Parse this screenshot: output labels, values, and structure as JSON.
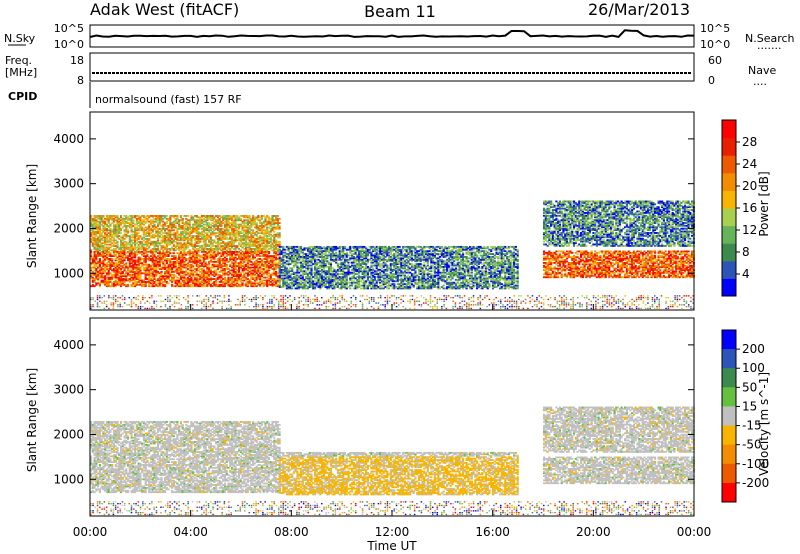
{
  "header": {
    "title_left": "Adak West (fitACF)",
    "title_center": "Beam 11",
    "title_right": "26/Mar/2013"
  },
  "top_panels": {
    "nsky_label": "N.Sky",
    "nsearch_label": "N.Search",
    "nsearch_dots": "·······",
    "nsky_ticks": [
      "10^5",
      "10^0"
    ],
    "nsearch_ticks": [
      "10^5",
      "10^0"
    ],
    "freq_label": "Freq.",
    "freq_unit": "[MHz]",
    "freq_ticks": [
      "18",
      "8"
    ],
    "nave_label": "Nave",
    "nave_dots": "····",
    "nave_ticks": [
      "60",
      "0"
    ],
    "cpid_label": "CPID",
    "cpid_value": "normalsound (fast) 157 RF"
  },
  "chart_data": [
    {
      "type": "heatmap",
      "quantity": "Power",
      "ylabel": "Slant Range [km]",
      "ylim": [
        180,
        4600
      ],
      "yticks": [
        "1000",
        "2000",
        "3000",
        "4000"
      ],
      "colorbar_label": "Power [dB]",
      "colorbar_ticks": [
        "4",
        "8",
        "12",
        "16",
        "20",
        "24",
        "28"
      ],
      "colorscale": [
        "#0000ff",
        "#2b56b8",
        "#3d8a4e",
        "#66b45a",
        "#a8d04e",
        "#f7b400",
        "#f28c00",
        "#ee5a00",
        "#e82000",
        "#ff0000"
      ],
      "echo_regions": [
        {
          "t_start": 0.0,
          "t_end": 7.5,
          "range_low": 700,
          "range_high": 1500,
          "level": "high"
        },
        {
          "t_start": 0.0,
          "t_end": 7.5,
          "range_low": 1500,
          "range_high": 2300,
          "level": "medium"
        },
        {
          "t_start": 7.5,
          "t_end": 17.0,
          "range_low": 650,
          "range_high": 1600,
          "level": "low"
        },
        {
          "t_start": 18.0,
          "t_end": 24.0,
          "range_low": 900,
          "range_high": 1500,
          "level": "high"
        },
        {
          "t_start": 18.0,
          "t_end": 24.0,
          "range_low": 1600,
          "range_high": 2600,
          "level": "low"
        }
      ]
    },
    {
      "type": "heatmap",
      "quantity": "Velocity",
      "ylabel": "Slant Range [km]",
      "ylim": [
        180,
        4600
      ],
      "yticks": [
        "1000",
        "2000",
        "3000",
        "4000"
      ],
      "colorbar_label": "Velocity [m s^-1]",
      "colorbar_ticks": [
        "200",
        "100",
        "50",
        "15",
        "-15",
        "-50",
        "-100",
        "-200"
      ],
      "colorscale": [
        "#0000ff",
        "#2b56b8",
        "#3d8a4e",
        "#66c040",
        "#c0c0c0",
        "#f7b400",
        "#f28c00",
        "#ee5a00",
        "#ff0000"
      ],
      "xlabel": "Time UT",
      "xticks": [
        "00:00",
        "04:00",
        "08:00",
        "12:00",
        "16:00",
        "20:00",
        "00:00"
      ],
      "xlim_hours": [
        0,
        24
      ]
    }
  ]
}
